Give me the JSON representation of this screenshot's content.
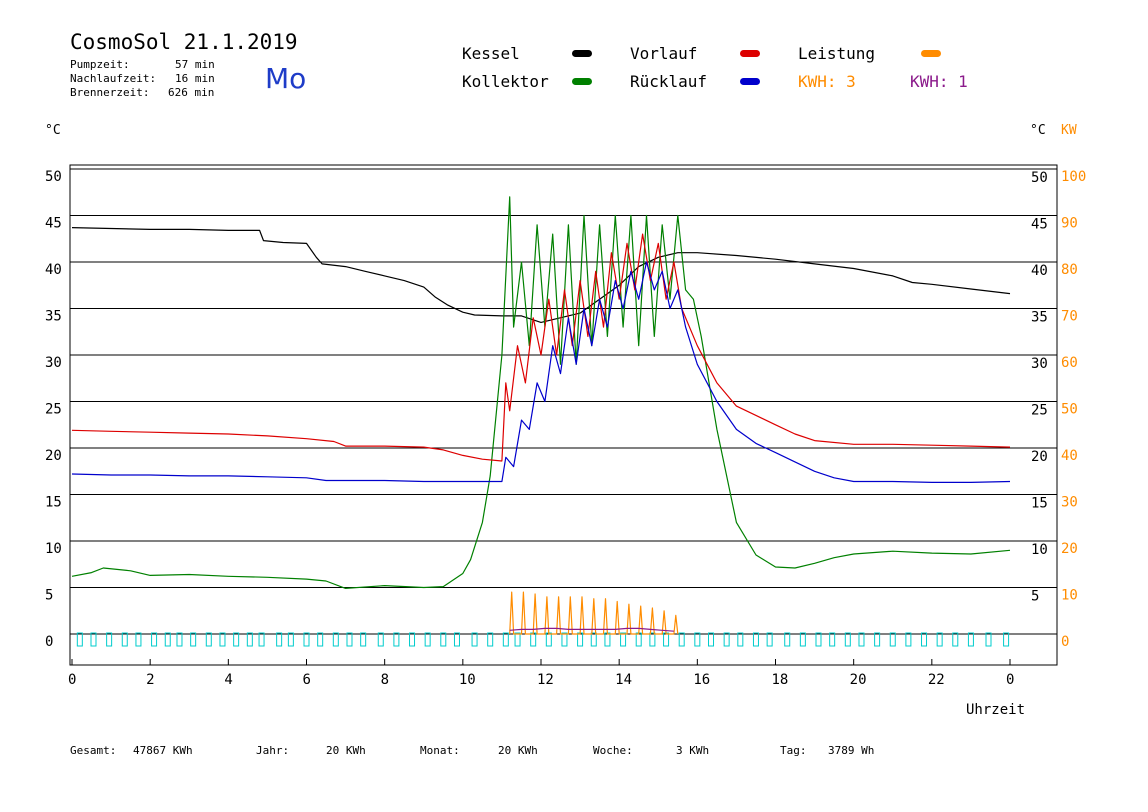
{
  "header": {
    "title": "CosmoSol 21.1.2019",
    "day": "Mo",
    "pump_label": "Pumpzeit:",
    "pump_value": "57 min",
    "after_label": "Nachlaufzeit:",
    "after_value": "16 min",
    "burner_label": "Brennerzeit:",
    "burner_value": "626 min"
  },
  "legend": {
    "kessel": "Kessel",
    "kollektor": "Kollektor",
    "vorlauf": "Vorlauf",
    "ruecklauf": "Rücklauf",
    "leistung": "Leistung",
    "kwh1": "KWH: 3",
    "kwh2": "KWH: 1"
  },
  "axes": {
    "left_unit": "°C",
    "right_unit_c": "°C",
    "right_unit_kw": "KW",
    "x_label": "Uhrzeit"
  },
  "footer": {
    "gesamt_label": "Gesamt:",
    "gesamt_value": "47867 KWh",
    "jahr_label": "Jahr:",
    "jahr_value": "20 KWh",
    "monat_label": "Monat:",
    "monat_value": "20 KWh",
    "woche_label": "Woche:",
    "woche_value": "3 KWh",
    "tag_label": "Tag:",
    "tag_value": "3789 Wh"
  },
  "colors": {
    "kessel": "#000000",
    "kollektor": "#008000",
    "vorlauf": "#dd0000",
    "ruecklauf": "#0000cc",
    "leistung": "#ff8c00",
    "kwh2": "#8b1a8b",
    "pump": "#00cccc"
  },
  "chart_data": {
    "type": "line",
    "x_ticks": [
      "0",
      "2",
      "4",
      "6",
      "8",
      "10",
      "12",
      "14",
      "16",
      "18",
      "20",
      "22",
      "0"
    ],
    "xlim": [
      0,
      24
    ],
    "ylim_left": [
      0,
      50
    ],
    "y_ticks_left": [
      "0",
      "5",
      "10",
      "15",
      "20",
      "25",
      "30",
      "35",
      "40",
      "45",
      "50"
    ],
    "y_ticks_right_c": [
      "5",
      "10",
      "15",
      "20",
      "25",
      "30",
      "35",
      "40",
      "45",
      "50"
    ],
    "y_ticks_right_kw": [
      "0",
      "10",
      "20",
      "30",
      "40",
      "50",
      "60",
      "70",
      "80",
      "90",
      "100"
    ],
    "series": [
      {
        "name": "Kessel",
        "key": "kessel",
        "x": [
          0,
          1,
          2,
          3,
          4,
          4.8,
          4.9,
          5.4,
          6,
          6.25,
          6.4,
          7,
          7.5,
          8,
          8.5,
          9,
          9.3,
          9.6,
          10,
          10.3,
          11,
          11.5,
          12,
          13,
          14,
          14.5,
          15,
          15.5,
          16,
          17,
          18,
          19,
          20,
          21,
          21.5,
          22,
          23,
          24
        ],
        "y": [
          43.7,
          43.6,
          43.5,
          43.5,
          43.4,
          43.4,
          42.3,
          42.1,
          42,
          40.5,
          39.8,
          39.5,
          39,
          38.5,
          38,
          37.3,
          36.2,
          35.4,
          34.6,
          34.3,
          34.2,
          34.2,
          33.5,
          34.5,
          37.5,
          39.5,
          40.5,
          41,
          41,
          40.7,
          40.3,
          39.8,
          39.3,
          38.5,
          37.8,
          37.6,
          37.1,
          36.6
        ]
      },
      {
        "name": "Kollektor",
        "key": "kollektor",
        "x": [
          0,
          0.5,
          0.8,
          1.5,
          2,
          3,
          4,
          5,
          6,
          6.5,
          7,
          8,
          9,
          9.5,
          10,
          10.2,
          10.5,
          10.7,
          11,
          11.2,
          11.3,
          11.5,
          11.7,
          11.9,
          12.1,
          12.3,
          12.5,
          12.7,
          12.9,
          13.1,
          13.3,
          13.5,
          13.7,
          13.9,
          14.1,
          14.3,
          14.5,
          14.7,
          14.9,
          15.1,
          15.3,
          15.5,
          15.7,
          15.9,
          16.1,
          16.5,
          17,
          17.5,
          18,
          18.5,
          19,
          19.5,
          20,
          21,
          22,
          23,
          24
        ],
        "y": [
          6.2,
          6.6,
          7.1,
          6.8,
          6.3,
          6.4,
          6.2,
          6.1,
          5.9,
          5.7,
          4.9,
          5.2,
          5,
          5.1,
          6.5,
          8,
          12,
          17,
          30,
          47,
          33,
          40,
          31,
          44,
          33,
          43,
          29,
          44,
          29,
          45,
          31,
          44,
          32,
          45,
          33,
          45,
          31,
          45,
          32,
          44,
          36,
          45,
          37,
          36,
          32,
          22,
          12,
          8.5,
          7.2,
          7.1,
          7.6,
          8.2,
          8.6,
          8.9,
          8.7,
          8.6,
          9
        ]
      },
      {
        "name": "Vorlauf",
        "key": "vorlauf",
        "x": [
          0,
          1,
          2,
          3,
          4,
          5,
          6,
          6.7,
          7,
          8,
          9,
          9.5,
          10,
          10.5,
          11,
          11.1,
          11.2,
          11.4,
          11.6,
          11.8,
          12,
          12.2,
          12.4,
          12.6,
          12.8,
          13,
          13.2,
          13.4,
          13.6,
          13.8,
          14,
          14.2,
          14.4,
          14.6,
          14.8,
          15,
          15.2,
          15.4,
          15.6,
          16,
          16.5,
          17,
          17.5,
          18,
          18.5,
          19,
          20,
          21,
          22,
          23,
          24
        ],
        "y": [
          21.9,
          21.8,
          21.7,
          21.6,
          21.5,
          21.3,
          21,
          20.7,
          20.2,
          20.2,
          20.1,
          19.8,
          19.2,
          18.8,
          18.6,
          27,
          24,
          31,
          27,
          34,
          30,
          36,
          30,
          37,
          31,
          38,
          32,
          39,
          33,
          41,
          36,
          42,
          37,
          43,
          38,
          42,
          36,
          40,
          35,
          31,
          27,
          24.5,
          23.5,
          22.5,
          21.5,
          20.8,
          20.4,
          20.4,
          20.3,
          20.2,
          20.1
        ]
      },
      {
        "name": "Rücklauf",
        "key": "ruecklauf",
        "x": [
          0,
          1,
          2,
          3,
          4,
          5,
          6,
          6.5,
          7,
          8,
          9,
          10,
          10.5,
          11,
          11.1,
          11.3,
          11.5,
          11.7,
          11.9,
          12.1,
          12.3,
          12.5,
          12.7,
          12.9,
          13.1,
          13.3,
          13.5,
          13.7,
          13.9,
          14.1,
          14.3,
          14.5,
          14.7,
          14.9,
          15.1,
          15.3,
          15.5,
          15.7,
          16,
          16.5,
          17,
          17.5,
          18,
          18.5,
          19,
          19.5,
          20,
          21,
          22,
          23,
          24
        ],
        "y": [
          17.2,
          17.1,
          17.1,
          17,
          17,
          16.9,
          16.8,
          16.5,
          16.5,
          16.5,
          16.4,
          16.4,
          16.4,
          16.4,
          19,
          18,
          23,
          22,
          27,
          25,
          31,
          28,
          34,
          29,
          35,
          31,
          36,
          33,
          38,
          35,
          39,
          36,
          40,
          37,
          39,
          35,
          37,
          33,
          29,
          25,
          22,
          20.5,
          19.5,
          18.5,
          17.5,
          16.8,
          16.4,
          16.4,
          16.3,
          16.3,
          16.4
        ]
      },
      {
        "name": "Leistung",
        "key": "leistung",
        "x": [
          11.2,
          11.25,
          11.3,
          11.5,
          11.55,
          11.6,
          11.8,
          11.85,
          11.9,
          12.1,
          12.15,
          12.2,
          12.4,
          12.45,
          12.5,
          12.7,
          12.75,
          12.8,
          13,
          13.05,
          13.1,
          13.3,
          13.35,
          13.4,
          13.6,
          13.65,
          13.7,
          13.9,
          13.95,
          14,
          14.2,
          14.25,
          14.3,
          14.5,
          14.55,
          14.6,
          14.8,
          14.85,
          14.9,
          15.1,
          15.15,
          15.2,
          15.4,
          15.45,
          15.5
        ],
        "y": [
          0,
          4.5,
          0,
          0,
          4.5,
          0,
          0,
          4.3,
          0,
          0,
          4,
          0,
          0,
          4,
          0,
          0,
          4,
          0,
          0,
          4,
          0,
          0,
          3.8,
          0,
          0,
          3.8,
          0,
          0,
          3.5,
          0,
          0,
          3.2,
          0,
          0,
          3,
          0,
          0,
          2.8,
          0,
          0,
          2.5,
          0,
          0,
          2,
          0
        ]
      },
      {
        "name": "KWH: 1",
        "key": "kwh2",
        "x": [
          11.2,
          11.5,
          11.8,
          12.1,
          12.4,
          12.7,
          13,
          13.3,
          13.6,
          13.9,
          14.2,
          14.5,
          14.8,
          15.1,
          15.4
        ],
        "y": [
          0.4,
          0.5,
          0.5,
          0.6,
          0.6,
          0.5,
          0.5,
          0.5,
          0.5,
          0.5,
          0.6,
          0.6,
          0.5,
          0.4,
          0.3
        ]
      }
    ],
    "pump_marks_x": [
      0.2,
      0.55,
      0.95,
      1.35,
      1.7,
      2.1,
      2.45,
      2.75,
      3.1,
      3.5,
      3.85,
      4.2,
      4.55,
      4.85,
      5.3,
      5.6,
      6,
      6.35,
      6.75,
      7.1,
      7.45,
      7.9,
      8.3,
      8.7,
      9.1,
      9.5,
      9.85,
      10.3,
      10.7,
      11.1,
      11.4,
      11.8,
      12.2,
      12.6,
      13,
      13.35,
      13.7,
      14.1,
      14.5,
      14.85,
      15.2,
      15.6,
      16,
      16.35,
      16.75,
      17.1,
      17.5,
      17.85,
      18.3,
      18.7,
      19.1,
      19.45,
      19.85,
      20.2,
      20.6,
      21,
      21.4,
      21.8,
      22.2,
      22.6,
      23,
      23.45,
      23.9
    ]
  }
}
